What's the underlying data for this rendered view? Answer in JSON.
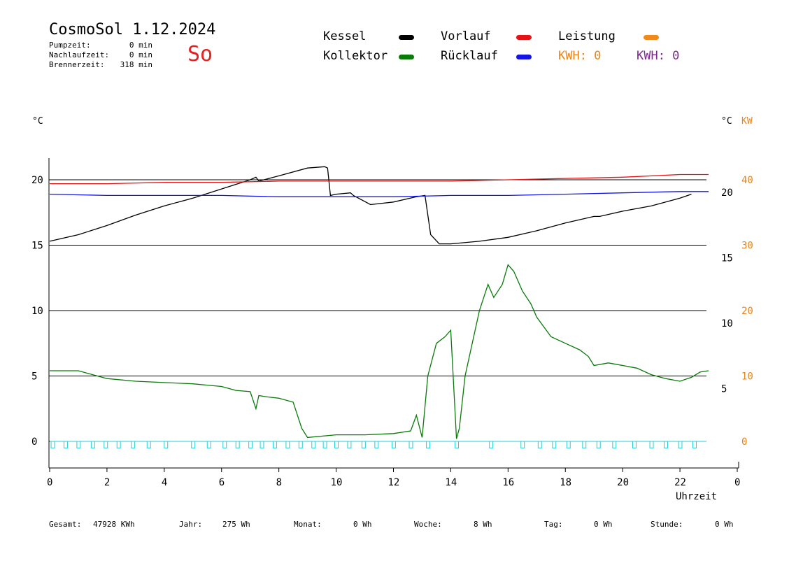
{
  "header": {
    "title": "CosmoSol 1.12.2024",
    "weekday": "So",
    "stats": [
      {
        "label": "Pumpzeit:",
        "value": "0 min"
      },
      {
        "label": "Nachlaufzeit:",
        "value": "0 min"
      },
      {
        "label": "Brennerzeit:",
        "value": "318 min"
      }
    ]
  },
  "legend": {
    "kessel": {
      "label": "Kessel",
      "color": "#000000"
    },
    "kollektor": {
      "label": "Kollektor",
      "color": "#0a7a0a"
    },
    "vorlauf": {
      "label": "Vorlauf",
      "color": "#e51414"
    },
    "ruecklauf": {
      "label": "Rücklauf",
      "color": "#1414e5"
    },
    "leistung": {
      "label": "Leistung",
      "color": "#f08a1c"
    },
    "kwh_orange": {
      "text": "KWH: 0",
      "color": "#e8841c"
    },
    "kwh_purple": {
      "text": "KWH: 0",
      "color": "#7a2a8a"
    }
  },
  "footer": [
    {
      "label": "Gesamt:",
      "value": "47928 KWh"
    },
    {
      "label": "Jahr:",
      "value": "275 Wh"
    },
    {
      "label": "Monat:",
      "value": "0 Wh"
    },
    {
      "label": "Woche:",
      "value": "8 Wh"
    },
    {
      "label": "Tag:",
      "value": "0 Wh"
    },
    {
      "label": "Stunde:",
      "value": "0 Wh"
    }
  ],
  "chart_data": {
    "type": "line",
    "xlabel": "Uhrzeit",
    "left_axis_unit": "°C",
    "right_axis_unit": "°C",
    "right_axis_unit2": "KW",
    "xlim": [
      0,
      24
    ],
    "x_ticks": [
      "0",
      "2",
      "4",
      "6",
      "8",
      "10",
      "12",
      "14",
      "16",
      "18",
      "20",
      "22",
      "0"
    ],
    "y_left": {
      "range": [
        -1.5,
        22
      ],
      "ticks": [
        0,
        5,
        10,
        15,
        20
      ]
    },
    "y_right_inner": {
      "ticks": [
        5,
        10,
        15,
        20
      ]
    },
    "y_right_outer": {
      "ticks": [
        0,
        10,
        20,
        30,
        40
      ],
      "color": "#e8841c"
    },
    "grid_lines_y": [
      0,
      5,
      10,
      15,
      20
    ],
    "series": [
      {
        "name": "Kessel",
        "color": "#000000",
        "x": [
          0,
          1,
          2,
          3,
          4,
          5,
          6,
          7,
          7.2,
          7.3,
          8,
          9,
          9.6,
          9.7,
          9.8,
          10,
          10.5,
          10.6,
          11.2,
          12,
          12.8,
          13.1,
          13.3,
          13.6,
          14,
          15,
          16,
          17,
          18,
          19,
          19.2,
          20,
          21,
          22,
          22.4
        ],
        "y": [
          15.3,
          15.8,
          16.5,
          17.3,
          18.0,
          18.6,
          19.3,
          20.0,
          20.2,
          19.9,
          20.3,
          20.9,
          21.0,
          20.9,
          18.8,
          18.9,
          19.0,
          18.8,
          18.1,
          18.3,
          18.7,
          18.8,
          15.8,
          15.1,
          15.1,
          15.3,
          15.6,
          16.1,
          16.7,
          17.2,
          17.2,
          17.6,
          18.0,
          18.6,
          18.9
        ]
      },
      {
        "name": "Kollektor",
        "color": "#0a7a0a",
        "x": [
          0,
          1,
          1.5,
          2,
          3,
          4,
          5,
          5.5,
          6,
          6.5,
          7,
          7.2,
          7.3,
          7.6,
          8,
          8.5,
          8.8,
          9,
          10,
          11,
          12,
          12.6,
          12.8,
          13,
          13.2,
          13.5,
          13.8,
          14,
          14.2,
          14.3,
          14.5,
          14.8,
          15,
          15.3,
          15.5,
          15.8,
          16,
          16.2,
          16.5,
          16.8,
          17,
          17.5,
          18,
          18.5,
          18.8,
          19,
          19.5,
          20,
          20.5,
          21,
          21.5,
          22,
          22.4,
          22.7,
          23
        ],
        "y": [
          5.4,
          5.4,
          5.1,
          4.8,
          4.6,
          4.5,
          4.4,
          4.3,
          4.2,
          3.9,
          3.8,
          2.5,
          3.5,
          3.4,
          3.3,
          3.0,
          1.0,
          0.3,
          0.5,
          0.5,
          0.6,
          0.8,
          2.0,
          0.3,
          5.0,
          7.5,
          8.0,
          8.5,
          0.2,
          1.0,
          5.0,
          8.0,
          10.0,
          12.0,
          11.0,
          12.0,
          13.5,
          13.0,
          11.5,
          10.5,
          9.5,
          8.0,
          7.5,
          7.0,
          6.5,
          5.8,
          6.0,
          5.8,
          5.6,
          5.1,
          4.8,
          4.6,
          4.9,
          5.3,
          5.4
        ]
      },
      {
        "name": "Vorlauf",
        "color": "#e51414",
        "x": [
          0,
          2,
          4,
          6,
          8,
          10,
          12,
          14,
          16,
          18,
          20,
          22,
          23
        ],
        "y": [
          19.7,
          19.7,
          19.8,
          19.8,
          19.9,
          19.9,
          19.9,
          19.9,
          20.0,
          20.1,
          20.2,
          20.4,
          20.4
        ]
      },
      {
        "name": "Rücklauf",
        "color": "#1414e5",
        "x": [
          0,
          2,
          4,
          6,
          8,
          10,
          12,
          14,
          16,
          18,
          20,
          22,
          23
        ],
        "y": [
          18.9,
          18.8,
          18.8,
          18.8,
          18.7,
          18.7,
          18.7,
          18.8,
          18.8,
          18.9,
          19.0,
          19.1,
          19.1
        ]
      },
      {
        "name": "Pumpe",
        "color": "#21cfd6",
        "pulses_x": [
          0.05,
          0.5,
          0.95,
          1.45,
          1.9,
          2.35,
          2.85,
          3.4,
          4.0,
          4.95,
          5.5,
          6.05,
          6.5,
          6.95,
          7.35,
          7.8,
          8.25,
          8.7,
          9.15,
          9.55,
          9.95,
          10.4,
          10.9,
          11.35,
          11.95,
          12.55,
          13.15,
          14.15,
          15.35,
          16.45,
          17.05,
          17.55,
          18.05,
          18.6,
          19.1,
          19.65,
          20.35,
          20.95,
          21.45,
          21.95,
          22.45
        ],
        "pulse_width_hours": 0.12,
        "y_low": -0.5,
        "y_high": 0
      }
    ]
  }
}
